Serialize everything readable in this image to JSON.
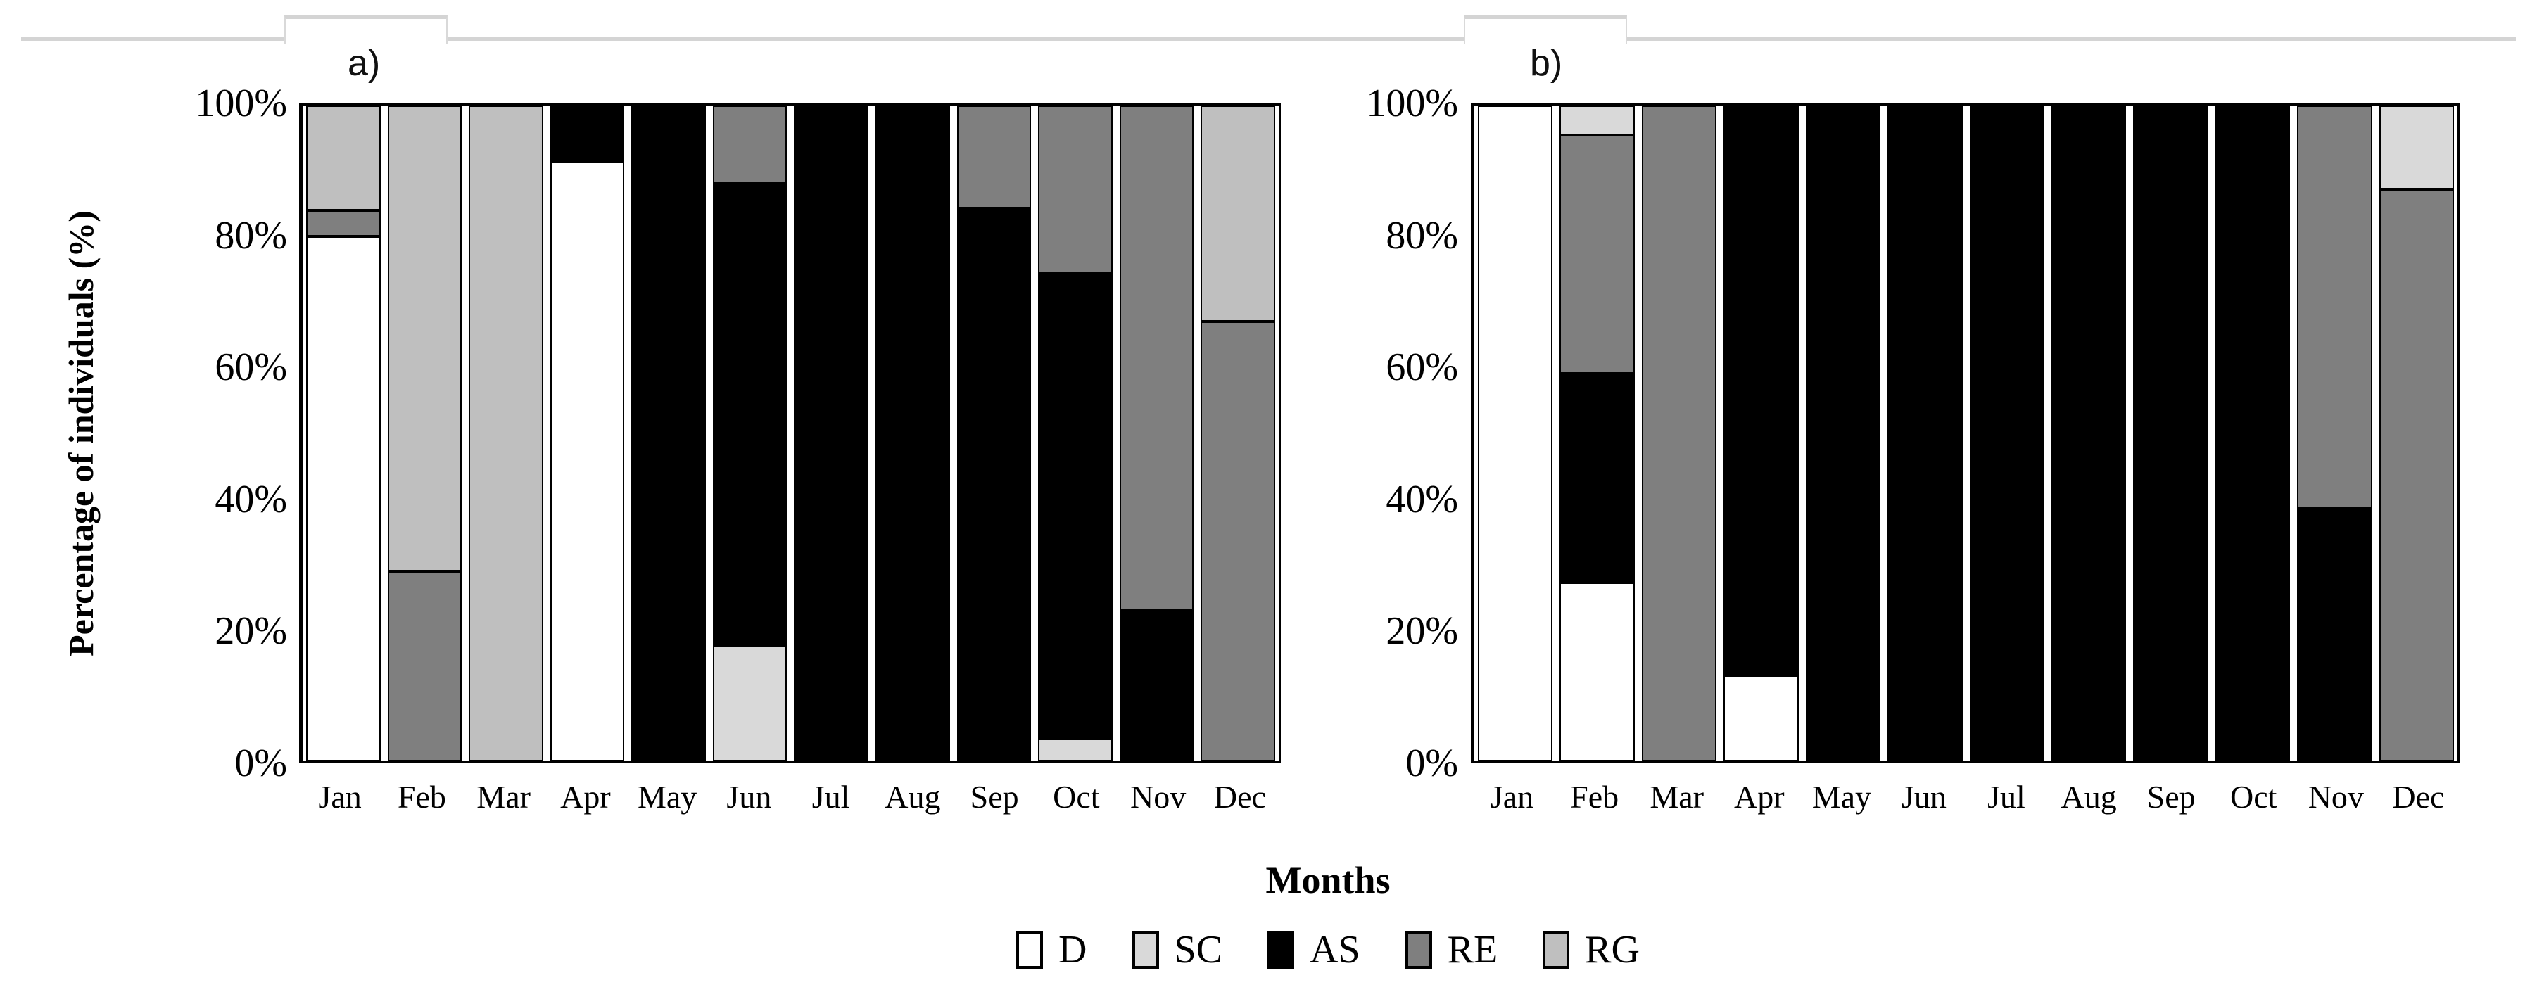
{
  "figure": {
    "panels": [
      {
        "id": "a",
        "label": "a)"
      },
      {
        "id": "b",
        "label": "b)"
      }
    ],
    "y_axis": {
      "title": "Percentage of individuals (%)",
      "ticks": [
        "100%",
        "80%",
        "60%",
        "40%",
        "20%",
        "0%"
      ],
      "range": [
        0,
        100
      ]
    },
    "x_axis": {
      "title": "Months",
      "categories": [
        "Jan",
        "Feb",
        "Mar",
        "Apr",
        "May",
        "Jun",
        "Jul",
        "Aug",
        "Sep",
        "Oct",
        "Nov",
        "Dec"
      ]
    }
  },
  "legend": {
    "position": "bottom-center",
    "items": [
      {
        "key": "D",
        "label": "D",
        "color": "#ffffff"
      },
      {
        "key": "SC",
        "label": "SC",
        "color": "#d9d9d9"
      },
      {
        "key": "AS",
        "label": "AS",
        "color": "#000000"
      },
      {
        "key": "RE",
        "label": "RE",
        "color": "#7f7f7f"
      },
      {
        "key": "RG",
        "label": "RG",
        "color": "#bfbfbf"
      }
    ]
  },
  "chart_data": [
    {
      "type": "bar",
      "stacked": true,
      "percent": true,
      "panel": "a",
      "title": "a)",
      "ylim": [
        0,
        100
      ],
      "grid": false,
      "categories": [
        "Jan",
        "Feb",
        "Mar",
        "Apr",
        "May",
        "Jun",
        "Jul",
        "Aug",
        "Sep",
        "Oct",
        "Nov",
        "Dec"
      ],
      "bars": [
        [
          {
            "series": "D",
            "value": 80
          },
          {
            "series": "RE",
            "value": 4
          },
          {
            "series": "RG",
            "value": 16
          }
        ],
        [
          {
            "series": "RE",
            "value": 29
          },
          {
            "series": "RG",
            "value": 71
          }
        ],
        [
          {
            "series": "RG",
            "value": 100
          }
        ],
        [
          {
            "series": "D",
            "value": 91.5
          },
          {
            "series": "AS",
            "value": 8.5
          }
        ],
        [
          {
            "series": "AS",
            "value": 100
          }
        ],
        [
          {
            "series": "SC",
            "value": 17.6
          },
          {
            "series": "AS",
            "value": 70.6
          },
          {
            "series": "RE",
            "value": 11.8
          }
        ],
        [
          {
            "series": "AS",
            "value": 100
          }
        ],
        [
          {
            "series": "AS",
            "value": 100
          }
        ],
        [
          {
            "series": "AS",
            "value": 84.3
          },
          {
            "series": "RE",
            "value": 15.7
          }
        ],
        [
          {
            "series": "SC",
            "value": 3.4
          },
          {
            "series": "AS",
            "value": 71.1
          },
          {
            "series": "RE",
            "value": 25.5
          }
        ],
        [
          {
            "series": "AS",
            "value": 23.1
          },
          {
            "series": "RE",
            "value": 76.9
          }
        ],
        [
          {
            "series": "RE",
            "value": 67.1
          },
          {
            "series": "RG",
            "value": 32.9
          }
        ]
      ]
    },
    {
      "type": "bar",
      "stacked": true,
      "percent": true,
      "panel": "b",
      "title": "b)",
      "ylim": [
        0,
        100
      ],
      "grid": false,
      "categories": [
        "Jan",
        "Feb",
        "Mar",
        "Apr",
        "May",
        "Jun",
        "Jul",
        "Aug",
        "Sep",
        "Oct",
        "Nov",
        "Dec"
      ],
      "bars": [
        [
          {
            "series": "D",
            "value": 100
          }
        ],
        [
          {
            "series": "D",
            "value": 27.3
          },
          {
            "series": "AS",
            "value": 31.8
          },
          {
            "series": "RE",
            "value": 36.4
          },
          {
            "series": "SC",
            "value": 4.5
          }
        ],
        [
          {
            "series": "RE",
            "value": 100
          }
        ],
        [
          {
            "series": "D",
            "value": 13.1
          },
          {
            "series": "AS",
            "value": 86.9
          }
        ],
        [
          {
            "series": "AS",
            "value": 100
          }
        ],
        [
          {
            "series": "AS",
            "value": 100
          }
        ],
        [
          {
            "series": "AS",
            "value": 100
          }
        ],
        [
          {
            "series": "AS",
            "value": 100
          }
        ],
        [
          {
            "series": "AS",
            "value": 100
          }
        ],
        [
          {
            "series": "AS",
            "value": 100
          }
        ],
        [
          {
            "series": "AS",
            "value": 38.5
          },
          {
            "series": "RE",
            "value": 61.5
          }
        ],
        [
          {
            "series": "RE",
            "value": 87.2
          },
          {
            "series": "SC",
            "value": 12.8
          }
        ]
      ]
    }
  ]
}
